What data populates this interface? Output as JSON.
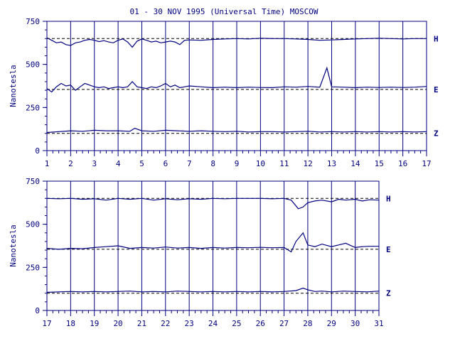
{
  "title": "01 - 30 NOV 1995 (Universal Time) MOSCOW",
  "colors": {
    "ink": "#000080",
    "background": "#ffffff"
  },
  "chart_data": [
    {
      "type": "line",
      "xlabel": "",
      "ylabel": "Nanotesla",
      "xlim": [
        1,
        17
      ],
      "ylim": [
        0,
        750
      ],
      "xticks": [
        1,
        2,
        3,
        4,
        5,
        6,
        7,
        8,
        9,
        10,
        11,
        12,
        13,
        14,
        15,
        16,
        17
      ],
      "yticks": [
        0,
        250,
        500,
        750
      ],
      "vertical_gridlines": true,
      "series": [
        {
          "name": "H",
          "baseline": 650,
          "x": [
            1,
            1.2,
            1.4,
            1.6,
            1.8,
            2,
            2.2,
            2.4,
            2.6,
            2.8,
            3,
            3.2,
            3.4,
            3.6,
            3.8,
            4,
            4.2,
            4.4,
            4.6,
            4.8,
            5,
            5.2,
            5.4,
            5.6,
            5.8,
            6,
            6.2,
            6.4,
            6.6,
            6.8,
            7,
            7.5,
            8,
            8.5,
            9,
            9.5,
            10,
            10.5,
            11,
            11.5,
            12,
            12.5,
            13,
            13.5,
            14,
            14.5,
            15,
            15.5,
            16,
            16.5,
            17
          ],
          "y": [
            655,
            640,
            625,
            630,
            615,
            610,
            625,
            630,
            640,
            645,
            640,
            632,
            638,
            630,
            625,
            640,
            648,
            630,
            600,
            635,
            648,
            640,
            630,
            635,
            625,
            630,
            635,
            630,
            615,
            640,
            642,
            640,
            645,
            648,
            650,
            648,
            652,
            650,
            650,
            648,
            645,
            640,
            642,
            645,
            648,
            650,
            652,
            650,
            648,
            650,
            650
          ]
        },
        {
          "name": "E",
          "baseline": 355,
          "x": [
            1,
            1.2,
            1.4,
            1.6,
            1.8,
            2,
            2.2,
            2.4,
            2.6,
            2.8,
            3,
            3.2,
            3.4,
            3.6,
            3.8,
            4,
            4.2,
            4.4,
            4.6,
            4.8,
            5,
            5.2,
            5.4,
            5.6,
            5.8,
            6,
            6.2,
            6.4,
            6.6,
            6.8,
            7,
            7.5,
            8,
            8.5,
            9,
            9.5,
            10,
            10.5,
            11,
            11.5,
            12,
            12.5,
            12.8,
            13,
            13.5,
            14,
            14.5,
            15,
            15.5,
            16,
            16.5,
            17
          ],
          "y": [
            360,
            340,
            370,
            390,
            375,
            380,
            350,
            370,
            390,
            380,
            370,
            365,
            370,
            360,
            365,
            370,
            365,
            370,
            400,
            370,
            365,
            360,
            370,
            365,
            375,
            390,
            370,
            380,
            365,
            370,
            375,
            370,
            365,
            368,
            365,
            368,
            366,
            365,
            370,
            368,
            372,
            368,
            480,
            370,
            368,
            365,
            368,
            366,
            368,
            366,
            368,
            372
          ]
        },
        {
          "name": "Z",
          "baseline": 100,
          "x": [
            1,
            1.5,
            2,
            2.5,
            3,
            3.5,
            4,
            4.5,
            4.7,
            5,
            5.5,
            6,
            6.5,
            7,
            7.5,
            8,
            8.5,
            9,
            9.5,
            10,
            10.5,
            11,
            11.5,
            12,
            12.5,
            13,
            13.5,
            14,
            14.5,
            15,
            15.5,
            16,
            16.5,
            17
          ],
          "y": [
            105,
            110,
            115,
            112,
            118,
            115,
            115,
            112,
            130,
            115,
            112,
            118,
            115,
            112,
            115,
            112,
            110,
            112,
            108,
            110,
            110,
            108,
            110,
            112,
            108,
            110,
            108,
            110,
            108,
            110,
            108,
            110,
            108,
            110
          ]
        }
      ],
      "series_labels": [
        "H",
        "E",
        "Z"
      ]
    },
    {
      "type": "line",
      "xlabel": "",
      "ylabel": "Nanotesla",
      "xlim": [
        17,
        31
      ],
      "ylim": [
        0,
        750
      ],
      "xticks": [
        17,
        18,
        19,
        20,
        21,
        22,
        23,
        24,
        25,
        26,
        27,
        28,
        29,
        30,
        31
      ],
      "yticks": [
        0,
        250,
        500,
        750
      ],
      "vertical_gridlines": true,
      "series": [
        {
          "name": "H",
          "baseline": 650,
          "x": [
            17,
            17.5,
            18,
            18.5,
            19,
            19.5,
            20,
            20.5,
            21,
            21.5,
            22,
            22.5,
            23,
            23.5,
            24,
            24.5,
            25,
            25.5,
            26,
            26.5,
            27,
            27.3,
            27.6,
            27.8,
            28,
            28.3,
            28.6,
            29,
            29.3,
            29.6,
            30,
            30.3,
            30.6,
            31
          ],
          "y": [
            650,
            648,
            650,
            645,
            648,
            640,
            650,
            645,
            650,
            640,
            648,
            642,
            648,
            645,
            650,
            648,
            650,
            650,
            650,
            648,
            650,
            640,
            590,
            600,
            625,
            635,
            640,
            630,
            645,
            640,
            645,
            635,
            642,
            640
          ]
        },
        {
          "name": "E",
          "baseline": 355,
          "x": [
            17,
            17.5,
            18,
            18.5,
            19,
            19.5,
            20,
            20.5,
            21,
            21.5,
            22,
            22.5,
            23,
            23.5,
            24,
            24.5,
            25,
            25.5,
            26,
            26.5,
            27,
            27.3,
            27.5,
            27.8,
            28,
            28.3,
            28.6,
            29,
            29.3,
            29.6,
            30,
            30.3,
            30.6,
            31
          ],
          "y": [
            360,
            355,
            360,
            358,
            365,
            370,
            375,
            360,
            365,
            362,
            368,
            362,
            365,
            360,
            365,
            362,
            365,
            364,
            366,
            364,
            365,
            340,
            400,
            450,
            380,
            370,
            385,
            370,
            380,
            390,
            365,
            370,
            372,
            372
          ]
        },
        {
          "name": "Z",
          "baseline": 100,
          "x": [
            17,
            17.5,
            18,
            18.5,
            19,
            19.5,
            20,
            20.5,
            21,
            21.5,
            22,
            22.5,
            23,
            23.5,
            24,
            24.5,
            25,
            25.5,
            26,
            26.5,
            27,
            27.5,
            27.8,
            28,
            28.3,
            28.6,
            29,
            29.5,
            30,
            30.5,
            31
          ],
          "y": [
            105,
            108,
            110,
            108,
            110,
            108,
            110,
            112,
            108,
            110,
            108,
            112,
            110,
            108,
            110,
            108,
            110,
            108,
            110,
            108,
            110,
            115,
            130,
            120,
            110,
            112,
            108,
            112,
            110,
            108,
            112
          ]
        }
      ],
      "series_labels": [
        "H",
        "E",
        "Z"
      ]
    }
  ]
}
